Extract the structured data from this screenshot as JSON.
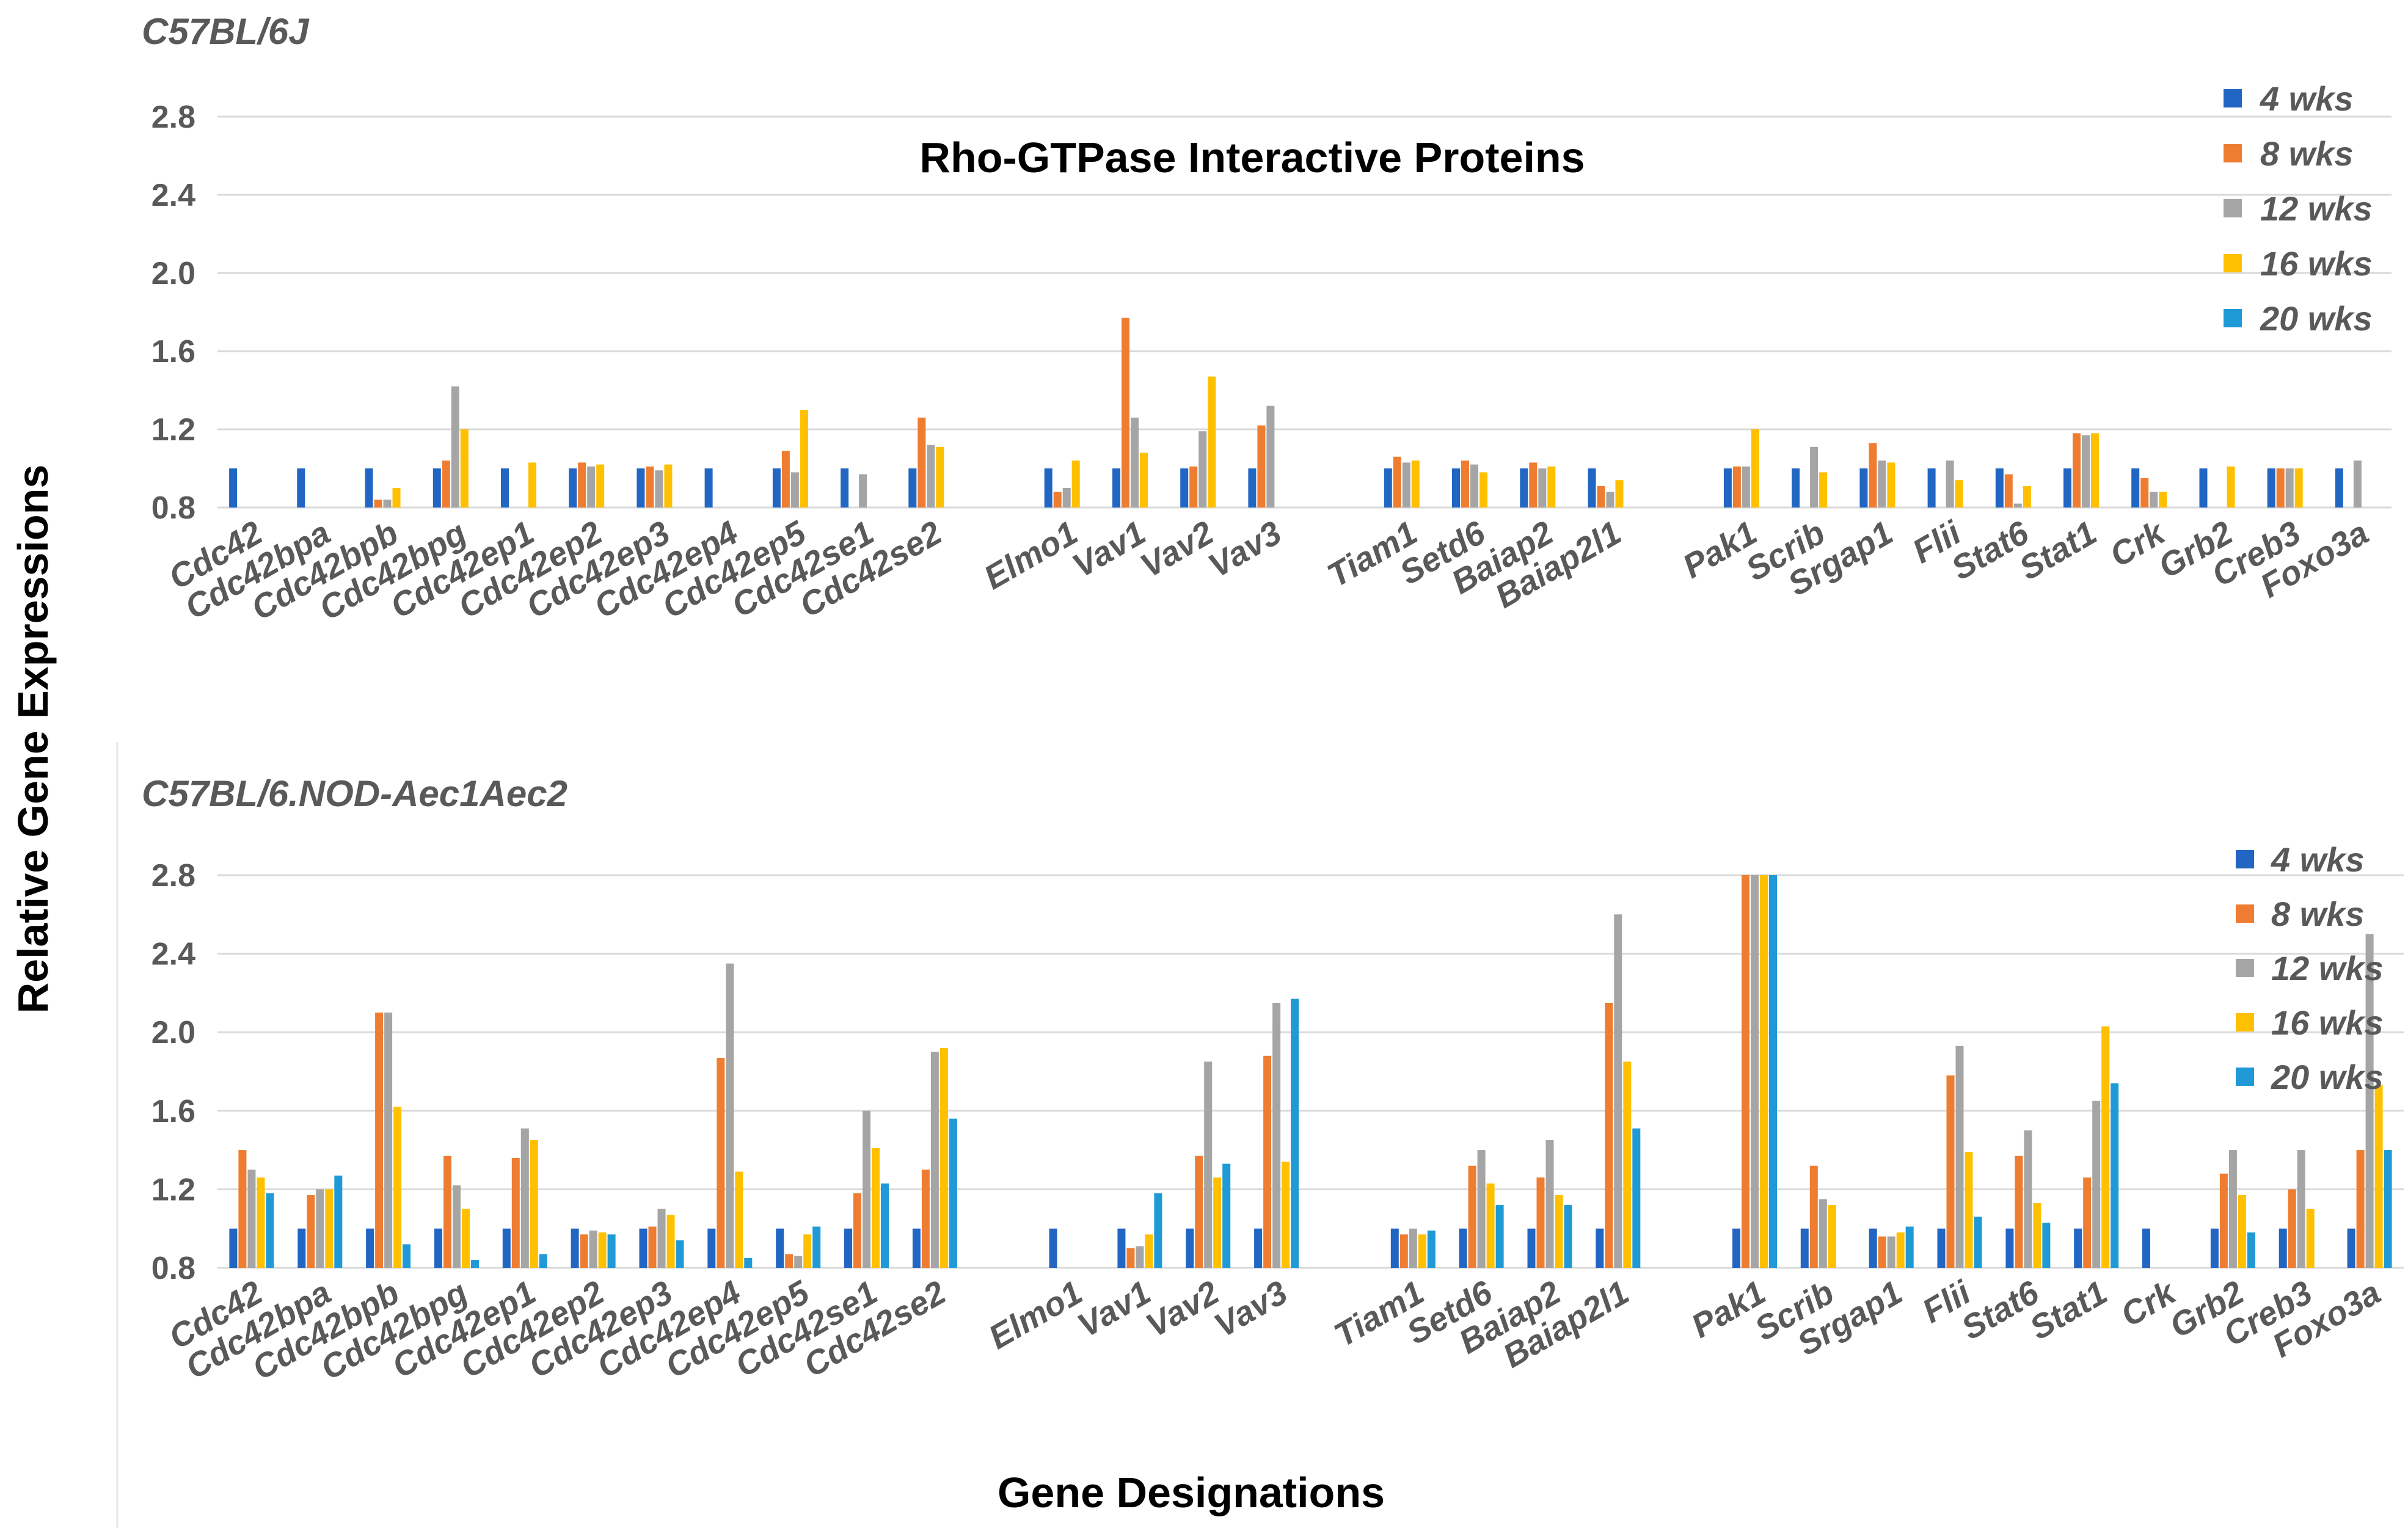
{
  "figure": {
    "ylabel": "Relative Gene Expressions",
    "xlabel": "Gene Designations"
  },
  "chart_data": [
    {
      "type": "bar",
      "strain": "C57BL/6J",
      "title": "Rho-GTPase Interactive Proteins",
      "ylim": [
        0.8,
        2.8
      ],
      "yticks": [
        "0.8",
        "1.2",
        "1.6",
        "2.0",
        "2.4",
        "2.8"
      ],
      "grid": true,
      "legend_position": "top-right",
      "categories": [
        "Cdc42",
        "Cdc42bpa",
        "Cdc42bpb",
        "Cdc42bpg",
        "Cdc42ep1",
        "Cdc42ep2",
        "Cdc42ep3",
        "Cdc42ep4",
        "Cdc42ep5",
        "Cdc42se1",
        "Cdc42se2",
        "",
        "Elmo1",
        "Vav1",
        "Vav2",
        "Vav3",
        "",
        "Tiam1",
        "Setd6",
        "Baiap2",
        "Baiap2l1",
        "",
        "Pak1",
        "Scrib",
        "Srgap1",
        "Flii",
        "Stat6",
        "Stat1",
        "Crk",
        "Grb2",
        "Creb3",
        "Foxo3a"
      ],
      "series": [
        {
          "name": "4 wks",
          "color": "#2166c3",
          "values": [
            1.0,
            1.0,
            1.0,
            1.0,
            1.0,
            1.0,
            1.0,
            1.0,
            1.0,
            1.0,
            1.0,
            null,
            1.0,
            1.0,
            1.0,
            1.0,
            null,
            1.0,
            1.0,
            1.0,
            1.0,
            null,
            1.0,
            1.0,
            1.0,
            1.0,
            1.0,
            1.0,
            1.0,
            1.0,
            1.0,
            1.0
          ]
        },
        {
          "name": "8 wks",
          "color": "#ef7d31",
          "values": [
            null,
            null,
            0.84,
            1.04,
            null,
            1.03,
            1.01,
            null,
            1.09,
            null,
            1.26,
            null,
            0.88,
            1.77,
            1.01,
            1.22,
            null,
            1.06,
            1.04,
            1.03,
            0.91,
            null,
            1.01,
            null,
            1.13,
            null,
            0.97,
            1.18,
            0.95,
            null,
            1.0,
            null
          ]
        },
        {
          "name": "12 wks",
          "color": "#a5a5a5",
          "values": [
            null,
            null,
            0.84,
            1.42,
            null,
            1.01,
            0.99,
            null,
            0.98,
            0.97,
            1.12,
            null,
            0.9,
            1.26,
            1.19,
            1.32,
            null,
            1.03,
            1.02,
            1.0,
            0.88,
            null,
            1.01,
            1.11,
            1.04,
            1.04,
            0.82,
            1.17,
            0.88,
            null,
            1.0,
            1.04
          ]
        },
        {
          "name": "16 wks",
          "color": "#ffc000",
          "values": [
            null,
            null,
            0.9,
            1.2,
            1.03,
            1.02,
            1.02,
            null,
            1.3,
            null,
            1.11,
            null,
            1.04,
            1.08,
            1.47,
            null,
            null,
            1.04,
            0.98,
            1.01,
            0.94,
            null,
            1.2,
            0.98,
            1.03,
            0.94,
            0.91,
            1.18,
            0.88,
            1.01,
            1.0,
            null
          ]
        },
        {
          "name": "20 wks",
          "color": "#1f9ad6",
          "values": [
            null,
            null,
            null,
            null,
            null,
            null,
            null,
            null,
            null,
            null,
            null,
            null,
            null,
            null,
            null,
            null,
            null,
            null,
            null,
            null,
            null,
            null,
            null,
            null,
            null,
            null,
            null,
            null,
            null,
            null,
            null,
            null
          ]
        }
      ]
    },
    {
      "type": "bar",
      "strain": "C57BL/6.NOD-Aec1Aec2",
      "ylim": [
        0.8,
        2.8
      ],
      "yticks": [
        "0.8",
        "1.2",
        "1.6",
        "2.0",
        "2.4",
        "2.8"
      ],
      "grid": true,
      "legend_position": "top-right",
      "categories": [
        "Cdc42",
        "Cdc42bpa",
        "Cdc42bpb",
        "Cdc42bpg",
        "Cdc42ep1",
        "Cdc42ep2",
        "Cdc42ep3",
        "Cdc42ep4",
        "Cdc42ep5",
        "Cdc42se1",
        "Cdc42se2",
        "",
        "Elmo1",
        "Vav1",
        "Vav2",
        "Vav3",
        "",
        "Tiam1",
        "Setd6",
        "Baiap2",
        "Baiap2l1",
        "",
        "Pak1",
        "Scrib",
        "Srgap1",
        "Flii",
        "Stat6",
        "Stat1",
        "Crk",
        "Grb2",
        "Creb3",
        "Foxo3a"
      ],
      "series": [
        {
          "name": "4 wks",
          "color": "#2166c3",
          "values": [
            1.0,
            1.0,
            1.0,
            1.0,
            1.0,
            1.0,
            1.0,
            1.0,
            1.0,
            1.0,
            1.0,
            null,
            1.0,
            1.0,
            1.0,
            1.0,
            null,
            1.0,
            1.0,
            1.0,
            1.0,
            null,
            1.0,
            1.0,
            1.0,
            1.0,
            1.0,
            1.0,
            1.0,
            1.0,
            1.0,
            1.0
          ]
        },
        {
          "name": "8 wks",
          "color": "#ef7d31",
          "values": [
            1.4,
            1.17,
            2.1,
            1.37,
            1.36,
            0.97,
            1.01,
            1.87,
            0.87,
            1.18,
            1.3,
            null,
            null,
            0.9,
            1.37,
            1.88,
            null,
            0.97,
            1.32,
            1.26,
            2.15,
            null,
            2.8,
            1.32,
            0.96,
            1.78,
            1.37,
            1.26,
            null,
            1.28,
            1.2,
            1.4
          ]
        },
        {
          "name": "12 wks",
          "color": "#a5a5a5",
          "values": [
            1.3,
            1.2,
            2.1,
            1.22,
            1.51,
            0.99,
            1.1,
            2.35,
            0.86,
            1.6,
            1.9,
            null,
            null,
            0.91,
            1.85,
            2.15,
            null,
            1.0,
            1.4,
            1.45,
            2.6,
            null,
            2.8,
            1.15,
            0.96,
            1.93,
            1.5,
            1.65,
            null,
            1.4,
            1.4,
            2.5
          ]
        },
        {
          "name": "16 wks",
          "color": "#ffc000",
          "values": [
            1.26,
            1.2,
            1.62,
            1.1,
            1.45,
            0.98,
            1.07,
            1.29,
            0.97,
            1.41,
            1.92,
            null,
            null,
            0.97,
            1.26,
            1.34,
            null,
            0.97,
            1.23,
            1.17,
            1.85,
            null,
            2.8,
            1.12,
            0.98,
            1.39,
            1.13,
            2.03,
            null,
            1.17,
            1.1,
            1.73
          ]
        },
        {
          "name": "20 wks",
          "color": "#1f9ad6",
          "values": [
            1.18,
            1.27,
            0.92,
            0.84,
            0.87,
            0.97,
            0.94,
            0.85,
            1.01,
            1.23,
            1.56,
            null,
            null,
            1.18,
            1.33,
            2.17,
            null,
            0.99,
            1.12,
            1.12,
            1.51,
            null,
            2.8,
            null,
            1.01,
            1.06,
            1.03,
            1.74,
            null,
            0.98,
            null,
            1.4
          ]
        }
      ]
    }
  ]
}
